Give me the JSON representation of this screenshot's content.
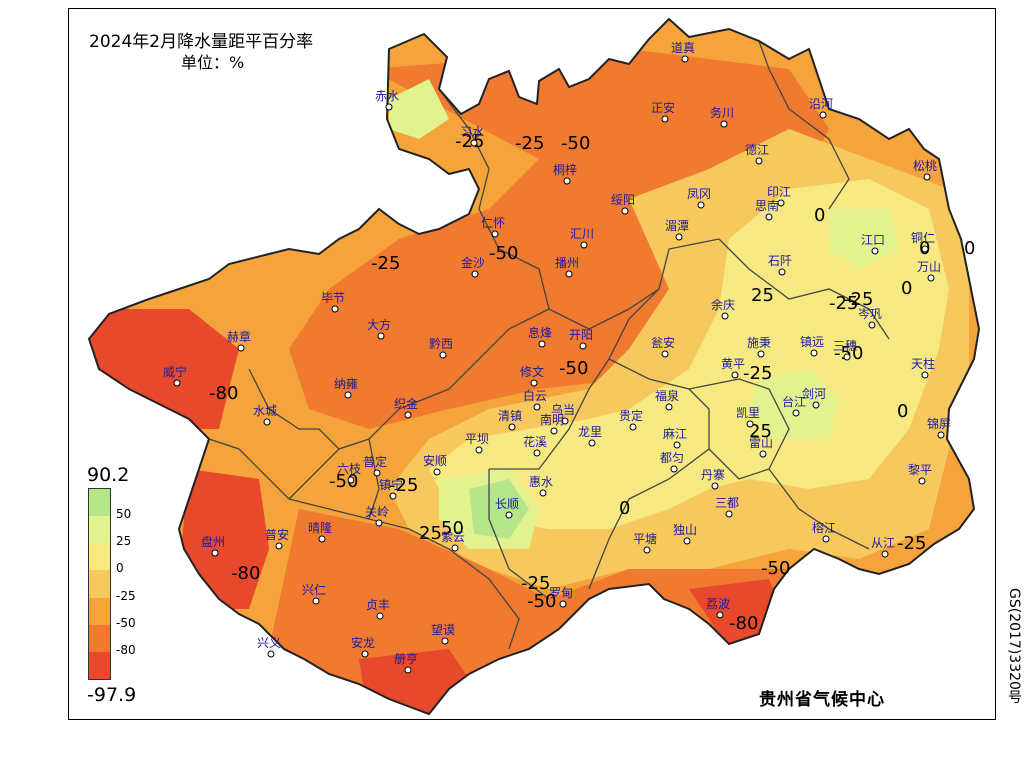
{
  "map": {
    "title": "2024年2月降水量距平百分率",
    "unit": "单位：%",
    "credit": "贵州省气候中心",
    "approval_code": "GS(2017)3320号"
  },
  "legend": {
    "max": "90.2",
    "min": "-97.9",
    "classes": [
      {
        "label": "50",
        "color": "#b5e68a"
      },
      {
        "label": "25",
        "color": "#e2f28e"
      },
      {
        "label": "0",
        "color": "#f7e981"
      },
      {
        "label": "-25",
        "color": "#f6c85e"
      },
      {
        "label": "-50",
        "color": "#f4a43a"
      },
      {
        "label": "-80",
        "color": "#ef7a30"
      },
      {
        "label": "",
        "color": "#e8492c"
      }
    ]
  },
  "stations": [
    {
      "name": "道真"
    },
    {
      "name": "赤水"
    },
    {
      "name": "习水"
    },
    {
      "name": "务川"
    },
    {
      "name": "沿河"
    },
    {
      "name": "正安"
    },
    {
      "name": "德江"
    },
    {
      "name": "桐梓"
    },
    {
      "name": "松桃"
    },
    {
      "name": "绥阳"
    },
    {
      "name": "凤冈"
    },
    {
      "name": "印江"
    },
    {
      "name": "思南"
    },
    {
      "name": "仁怀"
    },
    {
      "name": "汇川"
    },
    {
      "name": "湄潭"
    },
    {
      "name": "江口"
    },
    {
      "name": "铜仁"
    },
    {
      "name": "播州"
    },
    {
      "name": "金沙"
    },
    {
      "name": "石阡"
    },
    {
      "name": "万山"
    },
    {
      "name": "毕节"
    },
    {
      "name": "大方"
    },
    {
      "name": "息烽"
    },
    {
      "name": "开阳"
    },
    {
      "name": "余庆"
    },
    {
      "name": "岑巩"
    },
    {
      "name": "赫章"
    },
    {
      "name": "黔西"
    },
    {
      "name": "瓮安"
    },
    {
      "name": "施秉"
    },
    {
      "name": "镇远"
    },
    {
      "name": "三穗"
    },
    {
      "name": "威宁"
    },
    {
      "name": "黄平"
    },
    {
      "name": "天柱"
    },
    {
      "name": "纳雍"
    },
    {
      "name": "修文"
    },
    {
      "name": "白云"
    },
    {
      "name": "福泉"
    },
    {
      "name": "织金"
    },
    {
      "name": "剑河"
    },
    {
      "name": "乌当"
    },
    {
      "name": "台江"
    },
    {
      "name": "水城"
    },
    {
      "name": "清镇"
    },
    {
      "name": "贵定"
    },
    {
      "name": "凯里"
    },
    {
      "name": "锦屏"
    },
    {
      "name": "南明"
    },
    {
      "name": "龙里"
    },
    {
      "name": "麻江"
    },
    {
      "name": "雷山"
    },
    {
      "name": "平坝"
    },
    {
      "name": "花溪"
    },
    {
      "name": "普定"
    },
    {
      "name": "安顺"
    },
    {
      "name": "都匀"
    },
    {
      "name": "黎平"
    },
    {
      "name": "六枝"
    },
    {
      "name": "惠水"
    },
    {
      "name": "丹寨"
    },
    {
      "name": "镇宁"
    },
    {
      "name": "长顺"
    },
    {
      "name": "三都"
    },
    {
      "name": "关岭"
    },
    {
      "name": "盘州"
    },
    {
      "name": "普安"
    },
    {
      "name": "晴隆"
    },
    {
      "name": "紫云"
    },
    {
      "name": "平塘"
    },
    {
      "name": "独山"
    },
    {
      "name": "榕江"
    },
    {
      "name": "从江"
    },
    {
      "name": "兴仁"
    },
    {
      "name": "贞丰"
    },
    {
      "name": "罗甸"
    },
    {
      "name": "荔波"
    },
    {
      "name": "望谟"
    },
    {
      "name": "兴义"
    },
    {
      "name": "安龙"
    },
    {
      "name": "册亨"
    }
  ],
  "contour_labels": [
    "-50",
    "-25",
    "-25",
    "-50",
    "-25",
    "0",
    "-50",
    "-80",
    "25",
    "-25",
    "0",
    "25",
    "-25",
    "0",
    "-50",
    "-25",
    "0",
    "25",
    "50",
    "-25",
    "0",
    "-50",
    "-25",
    "-50",
    "-80",
    "-80",
    "-25",
    "-50",
    "0"
  ]
}
